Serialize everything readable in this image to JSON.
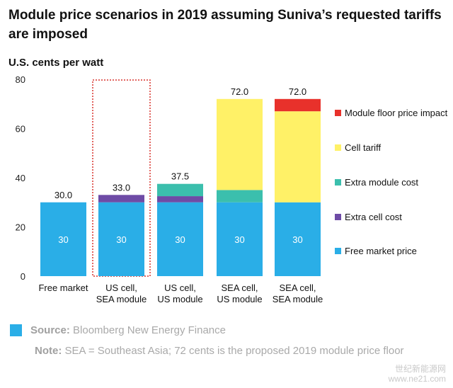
{
  "title": "Module price scenarios in 2019 assuming Suniva’s requested tariffs are imposed",
  "footer": {
    "source_label": "Source:",
    "source_text": "Bloomberg New Energy Finance",
    "note_label": "Note:",
    "note_text": "SEA = Southeast Asia; 72 cents is the proposed 2019 module price floor"
  },
  "watermark": {
    "line1": "世纪新能源网",
    "line2": "www.ne21.com"
  },
  "colors": {
    "module_floor": "#e8312b",
    "cell_tariff": "#fff167",
    "extra_module": "#3bbfad",
    "extra_cell": "#6e4ba6",
    "free_market": "#2aaee7",
    "highlight_box": "#d9322b"
  },
  "chart_data": {
    "type": "bar",
    "stacked": true,
    "ylabel": "U.S. cents per watt",
    "ylim": [
      0,
      80
    ],
    "yticks": [
      0,
      20,
      40,
      60,
      80
    ],
    "categories": [
      "Free market",
      "US cell, SEA module",
      "US cell, US module",
      "SEA cell, US module",
      "SEA cell, SEA module"
    ],
    "category_lines": [
      [
        "Free market"
      ],
      [
        "US cell,",
        "SEA module"
      ],
      [
        "US cell,",
        "US module"
      ],
      [
        "SEA cell,",
        "US module"
      ],
      [
        "SEA cell,",
        "SEA module"
      ]
    ],
    "series": [
      {
        "name": "Free market price",
        "color": "#2aaee7",
        "values": [
          30,
          30,
          30,
          30,
          30
        ]
      },
      {
        "name": "Extra cell cost",
        "color": "#6e4ba6",
        "values": [
          0,
          3,
          2.5,
          0,
          0
        ]
      },
      {
        "name": "Extra module cost",
        "color": "#3bbfad",
        "values": [
          0,
          0,
          5,
          5,
          0
        ]
      },
      {
        "name": "Cell tariff",
        "color": "#fff167",
        "values": [
          0,
          0,
          0,
          37,
          37
        ]
      },
      {
        "name": "Module floor price impact",
        "color": "#e8312b",
        "values": [
          0,
          0,
          0,
          0,
          5
        ]
      }
    ],
    "totals": [
      "30.0",
      "33.0",
      "37.5",
      "72.0",
      "72.0"
    ],
    "segment_labels": [
      "30",
      "30",
      "30",
      "30",
      "30"
    ],
    "legend_order": [
      "Module floor price impact",
      "Cell tariff",
      "Extra module cost",
      "Extra cell cost",
      "Free market price"
    ],
    "legend_position": "right",
    "highlighted_category": "US cell, SEA module",
    "grid": false
  }
}
